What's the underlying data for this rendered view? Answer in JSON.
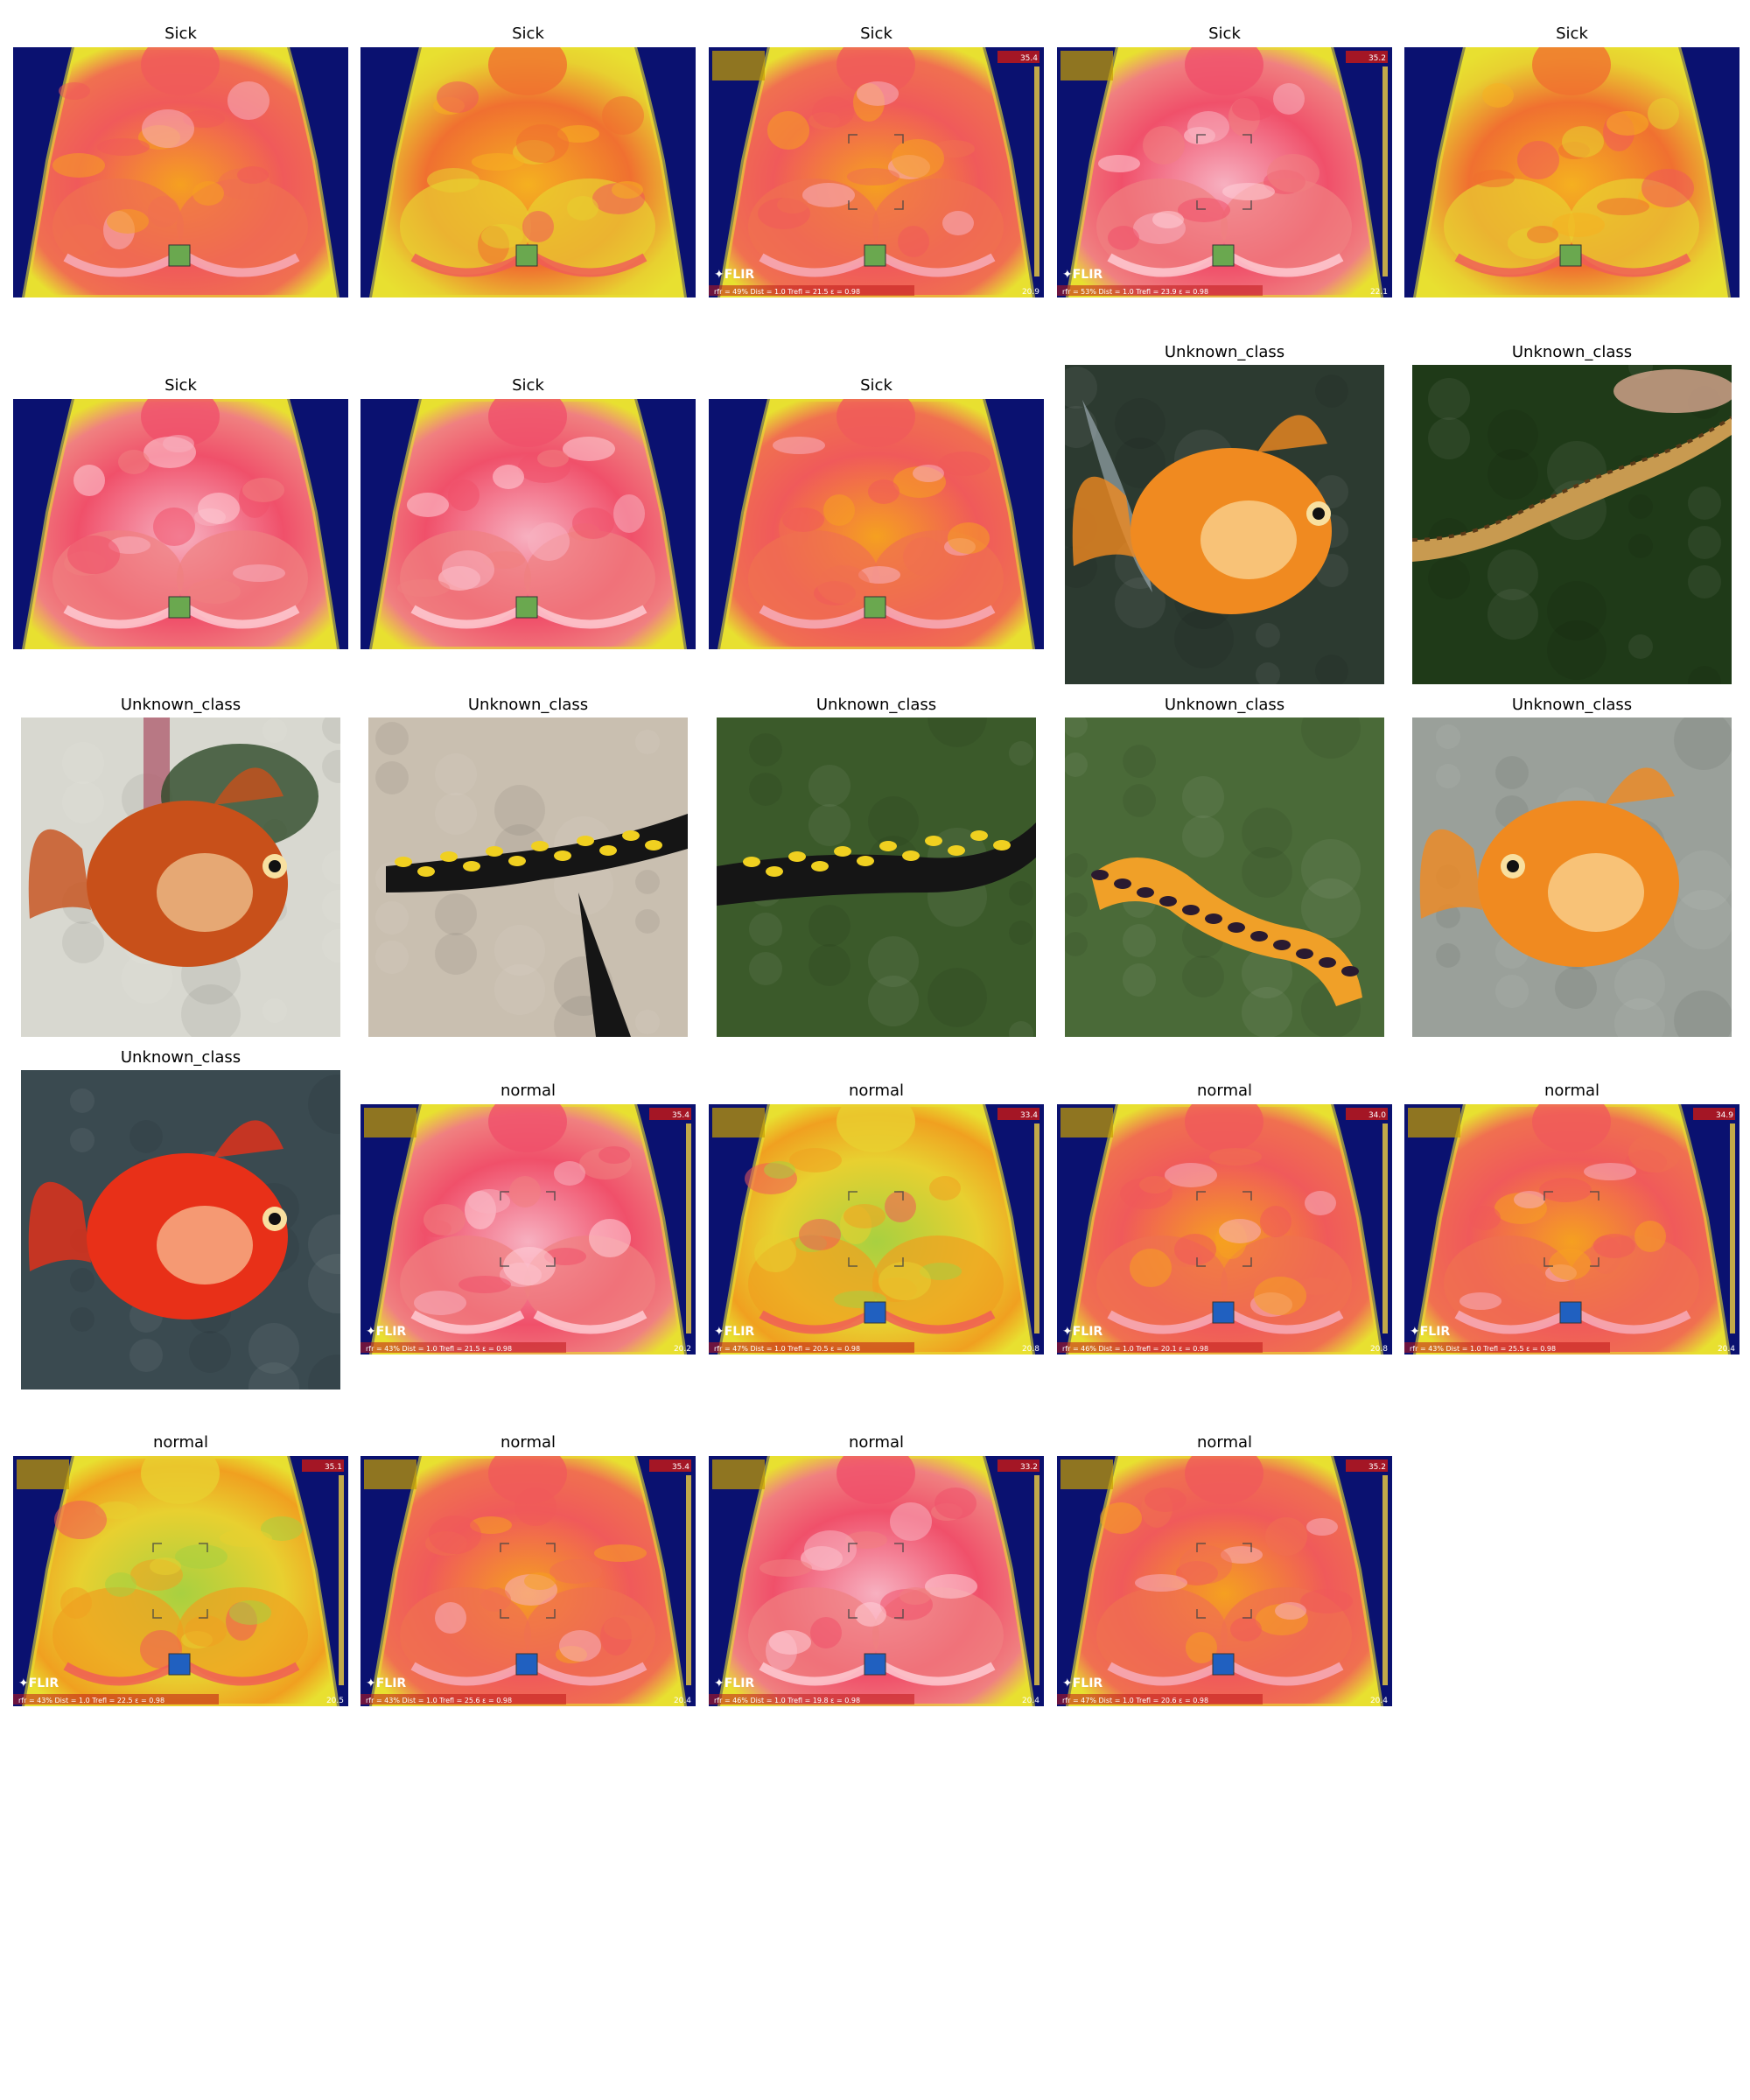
{
  "panels": [
    {
      "label": "Sick",
      "kind": "thermal",
      "variant": "warm",
      "overlay": false,
      "marker": "green"
    },
    {
      "label": "Sick",
      "kind": "thermal",
      "variant": "warm-yellow",
      "overlay": false,
      "marker": "green"
    },
    {
      "label": "Sick",
      "kind": "thermal",
      "variant": "warm",
      "overlay": true,
      "marker": "green",
      "scale_top": "35.4",
      "scale_bottom": "20.9",
      "footer": "rfr = 49%  Dist = 1.0  Trefl = 21.5  ε = 0.98"
    },
    {
      "label": "Sick",
      "kind": "thermal",
      "variant": "pink",
      "overlay": true,
      "marker": "green",
      "scale_top": "35.2",
      "scale_bottom": "22.1",
      "footer": "rfr = 53%  Dist = 1.0  Trefl = 23.9  ε = 0.98"
    },
    {
      "label": "Sick",
      "kind": "thermal",
      "variant": "warm-yellow",
      "overlay": false,
      "marker": "green"
    },
    {
      "label": "Sick",
      "kind": "thermal",
      "variant": "pink",
      "overlay": false,
      "marker": "green"
    },
    {
      "label": "Sick",
      "kind": "thermal",
      "variant": "pink",
      "overlay": false,
      "marker": "green"
    },
    {
      "label": "Sick",
      "kind": "thermal",
      "variant": "warm",
      "overlay": false,
      "marker": "green"
    },
    {
      "label": "Unknown_class",
      "kind": "photo",
      "variant": "goldfish-dark"
    },
    {
      "label": "Unknown_class",
      "kind": "photo",
      "variant": "newt"
    },
    {
      "label": "Unknown_class",
      "kind": "photo",
      "variant": "goldfish-tank"
    },
    {
      "label": "Unknown_class",
      "kind": "photo",
      "variant": "salamander-stone"
    },
    {
      "label": "Unknown_class",
      "kind": "photo",
      "variant": "salamander-grass"
    },
    {
      "label": "Unknown_class",
      "kind": "photo",
      "variant": "salamander-orange"
    },
    {
      "label": "Unknown_class",
      "kind": "photo",
      "variant": "goldfish-grey"
    },
    {
      "label": "Unknown_class",
      "kind": "photo",
      "variant": "goldfish-red"
    },
    {
      "label": "normal",
      "kind": "thermal",
      "variant": "pink",
      "overlay": true,
      "marker": "none",
      "scale_top": "35.4",
      "scale_bottom": "20.2",
      "footer": "rfr = 43%  Dist = 1.0  Trefl = 21.5  ε = 0.98"
    },
    {
      "label": "normal",
      "kind": "thermal",
      "variant": "yellow-green",
      "overlay": true,
      "marker": "blue",
      "scale_top": "33.4",
      "scale_bottom": "20.8",
      "footer": "rfr = 47%  Dist = 1.0  Trefl = 20.5  ε = 0.98"
    },
    {
      "label": "normal",
      "kind": "thermal",
      "variant": "warm",
      "overlay": true,
      "marker": "blue",
      "scale_top": "34.0",
      "scale_bottom": "20.8",
      "footer": "rfr = 46%  Dist = 1.0  Trefl = 20.1  ε = 0.98"
    },
    {
      "label": "normal",
      "kind": "thermal",
      "variant": "warm",
      "overlay": true,
      "marker": "blue",
      "scale_top": "34.9",
      "scale_bottom": "20.4",
      "footer": "rfr = 43%  Dist = 1.0  Trefl = 25.5  ε = 0.98"
    },
    {
      "label": "normal",
      "kind": "thermal",
      "variant": "yellow-green",
      "overlay": true,
      "marker": "blue",
      "scale_top": "35.1",
      "scale_bottom": "20.5",
      "footer": "rfr = 43%  Dist = 1.0  Trefl = 22.5  ε = 0.98"
    },
    {
      "label": "normal",
      "kind": "thermal",
      "variant": "warm",
      "overlay": true,
      "marker": "blue",
      "scale_top": "35.4",
      "scale_bottom": "20.4",
      "footer": "rfr = 43%  Dist = 1.0  Trefl = 25.6  ε = 0.98"
    },
    {
      "label": "normal",
      "kind": "thermal",
      "variant": "pink",
      "overlay": true,
      "marker": "blue",
      "scale_top": "33.2",
      "scale_bottom": "20.4",
      "footer": "rfr = 46%  Dist = 1.0  Trefl = 19.8  ε = 0.98"
    },
    {
      "label": "normal",
      "kind": "thermal",
      "variant": "warm",
      "overlay": true,
      "marker": "blue",
      "scale_top": "35.2",
      "scale_bottom": "20.4",
      "footer": "rfr = 47%  Dist = 1.0  Trefl = 20.6  ε = 0.98"
    }
  ],
  "brand": "FLIR",
  "colors": {
    "thermal_bg": "#0a1170",
    "thermal_hot": "#f05a5a",
    "thermal_pink": "#f5a0b0",
    "thermal_orange": "#f5a020",
    "thermal_yellow": "#e8e030",
    "marker_green": "#6aa84f",
    "marker_blue": "#2060c0"
  }
}
